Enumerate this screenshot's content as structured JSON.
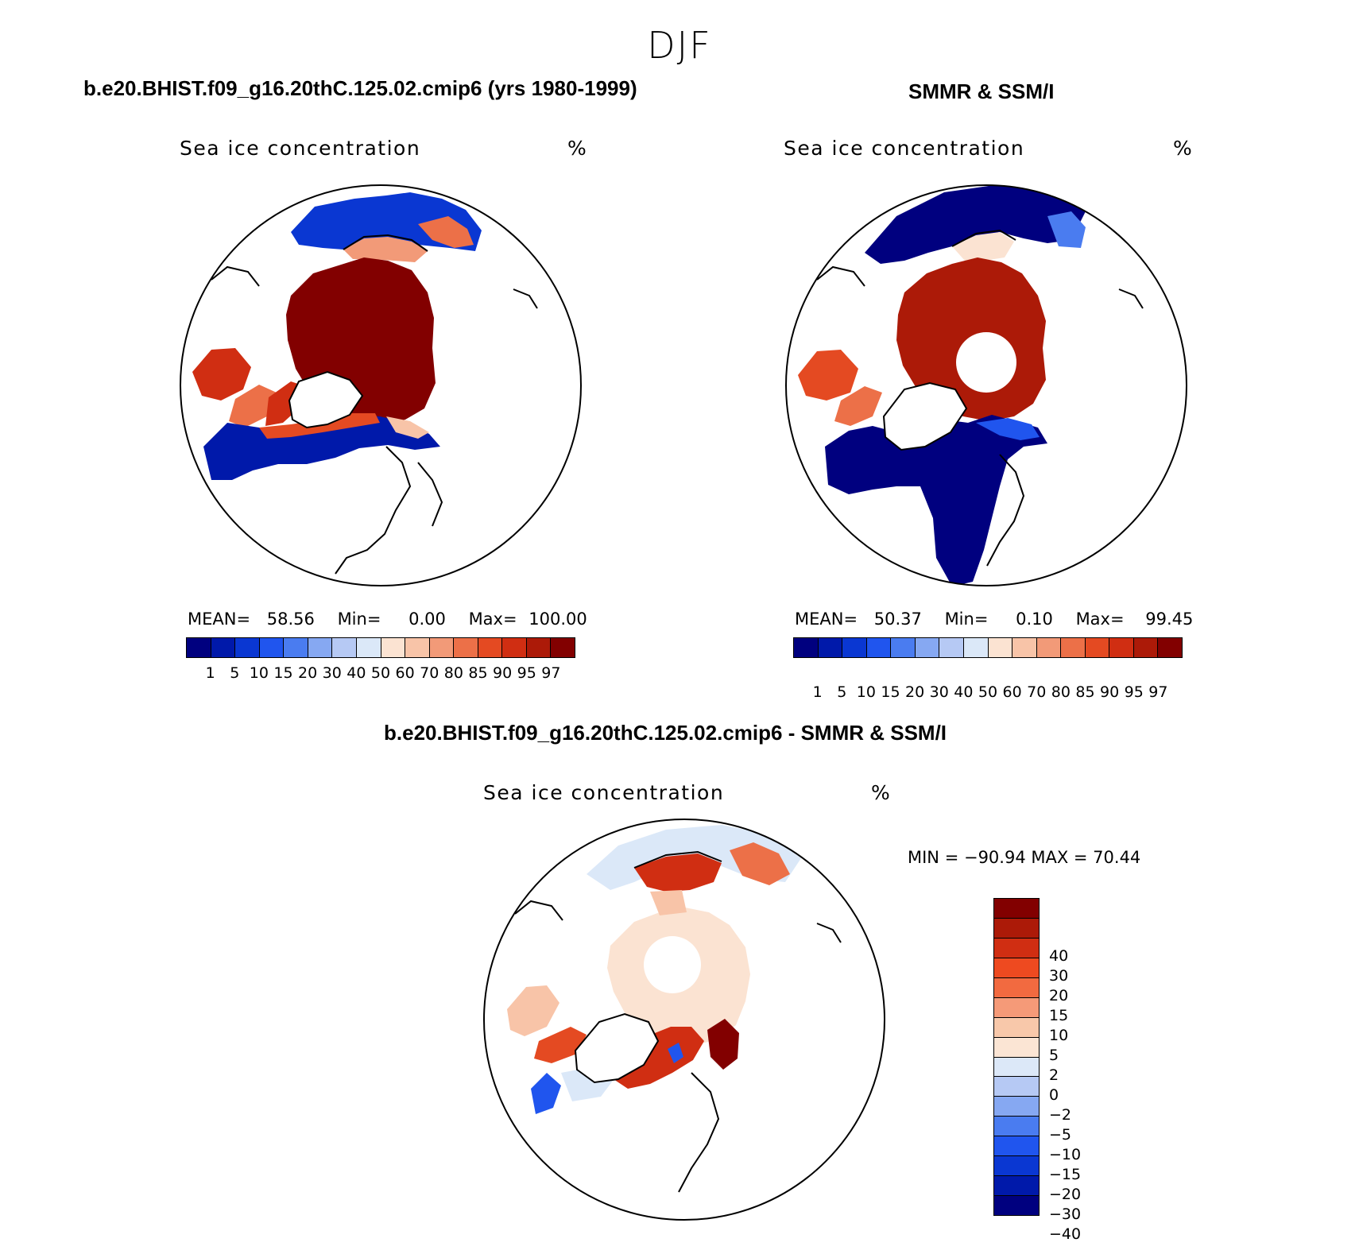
{
  "season": "DJF",
  "panels": [
    {
      "title": "b.e20.BHIST.f09_g16.20thC.125.02.cmip6 (yrs 1980-1999)",
      "subtitle": "Sea ice concentration",
      "units": "%",
      "stats": {
        "mean_label": "MEAN=",
        "mean": "58.56",
        "min_label": "Min=",
        "min": "0.00",
        "max_label": "Max=",
        "max": "100.00"
      }
    },
    {
      "title": "SMMR & SSM/I",
      "subtitle": "Sea ice concentration",
      "units": "%",
      "stats": {
        "mean_label": "MEAN=",
        "mean": "50.37",
        "min_label": "Min=",
        "min": "0.10",
        "max_label": "Max=",
        "max": "99.45"
      }
    },
    {
      "title": "b.e20.BHIST.f09_g16.20thC.125.02.cmip6 - SMMR & SSM/I",
      "subtitle": "Sea ice concentration",
      "units": "%",
      "minmax": "MIN = −90.94  MAX =   70.44"
    }
  ],
  "colorbar_conc": {
    "ticks": [
      "1",
      "5",
      "10",
      "15",
      "20",
      "30",
      "40",
      "50",
      "60",
      "70",
      "80",
      "85",
      "90",
      "95",
      "97"
    ],
    "colors": [
      "#00007f",
      "#0019aa",
      "#0a37d2",
      "#2055ee",
      "#4a7cf0",
      "#86a8f2",
      "#b6c9f4",
      "#dbe8f8",
      "#fbe3d2",
      "#f8c4a8",
      "#f29a78",
      "#ec7048",
      "#e44a22",
      "#d02e12",
      "#ac1a08",
      "#820000"
    ]
  },
  "colorbar_diff": {
    "ticks": [
      "40",
      "30",
      "20",
      "15",
      "10",
      "5",
      "2",
      "0",
      "−2",
      "−5",
      "−10",
      "−15",
      "−20",
      "−30",
      "−40"
    ],
    "colors": [
      "#820000",
      "#ac1a08",
      "#d02e12",
      "#ee4a20",
      "#f26a40",
      "#f59a78",
      "#f8c8aa",
      "#fbe5d4",
      "#dce8f8",
      "#b6c9f4",
      "#86a8f2",
      "#4a7cf0",
      "#2055ee",
      "#0a37d2",
      "#0019aa",
      "#00007f"
    ]
  }
}
